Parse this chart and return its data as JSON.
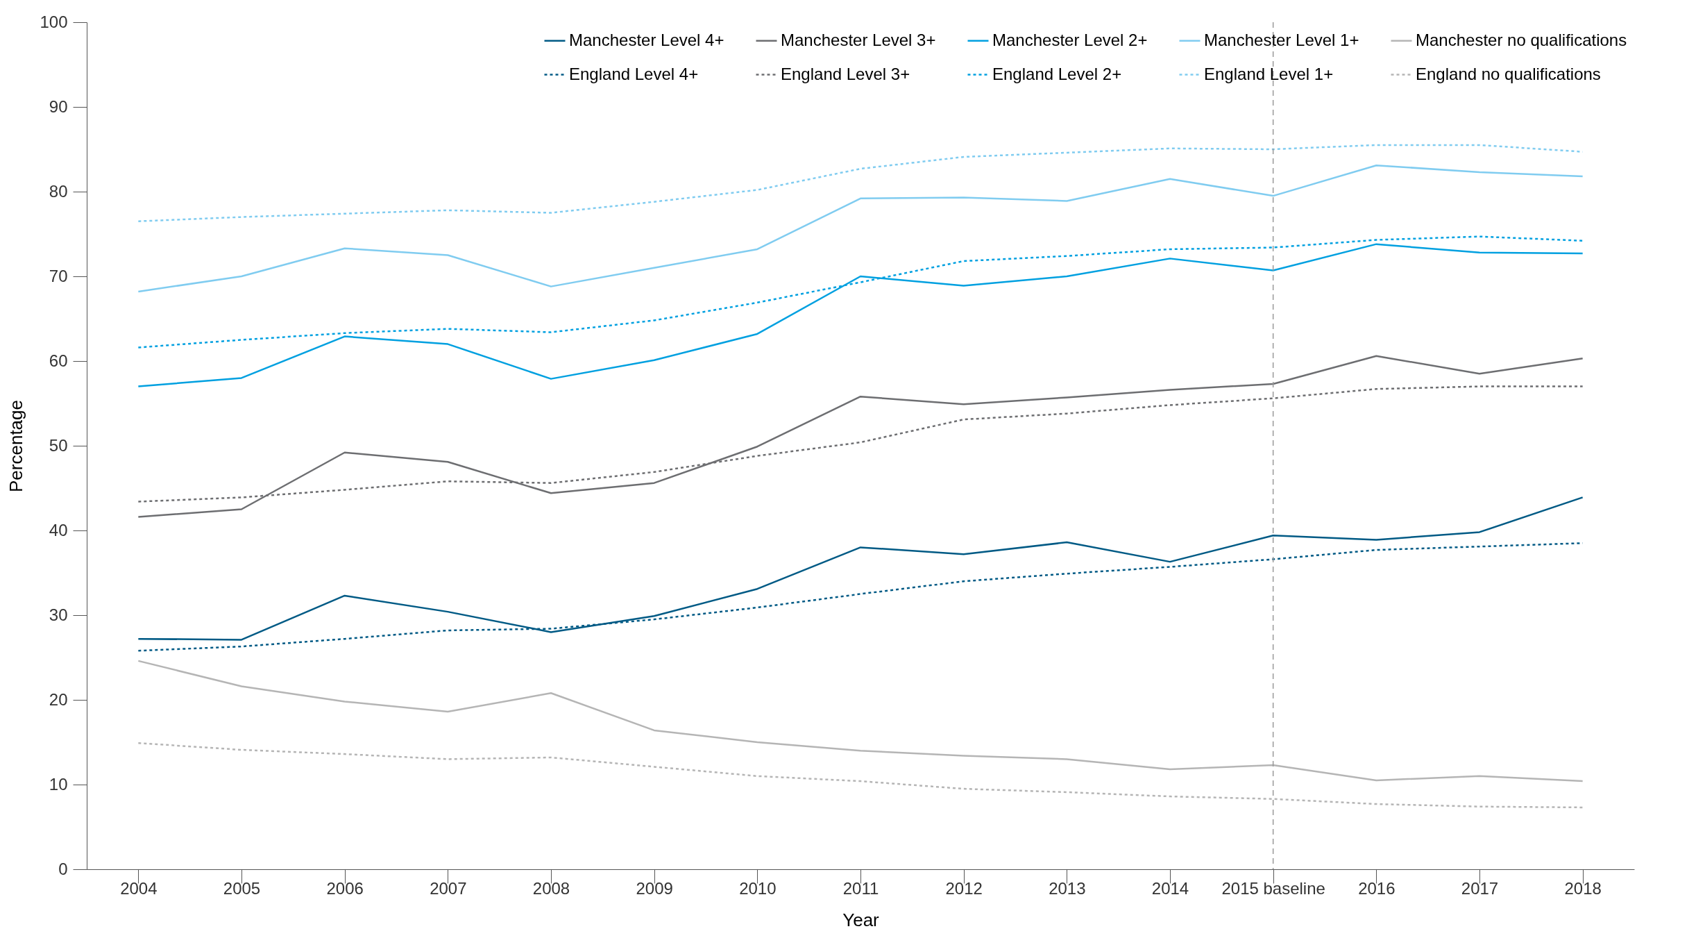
{
  "chart_data": {
    "type": "line",
    "xlabel": "Year",
    "ylabel": "Percentage",
    "categories": [
      "2004",
      "2005",
      "2006",
      "2007",
      "2008",
      "2009",
      "2010",
      "2011",
      "2012",
      "2013",
      "2014",
      "2015 baseline",
      "2016",
      "2017",
      "2018"
    ],
    "ylim": [
      0,
      100
    ],
    "yticks": [
      0,
      10,
      20,
      30,
      40,
      50,
      60,
      70,
      80,
      90,
      100
    ],
    "grid": false,
    "legend": "top right",
    "marker": "none",
    "ref_lines": [
      {
        "axis": "x",
        "value": "2015 baseline",
        "color": "#999999",
        "line_style": "dashed"
      }
    ],
    "series": [
      {
        "name": "Manchester Level 4+",
        "color": "#005a85",
        "line_style": "solid",
        "values": [
          27.2,
          27.1,
          32.3,
          30.4,
          28.0,
          29.9,
          33.1,
          38.0,
          37.2,
          38.6,
          36.3,
          39.4,
          38.9,
          39.8,
          43.9
        ]
      },
      {
        "name": "Manchester Level 3+",
        "color": "#6d6e71",
        "line_style": "solid",
        "values": [
          41.6,
          42.5,
          49.2,
          48.1,
          44.4,
          45.6,
          49.9,
          55.8,
          54.9,
          55.7,
          56.6,
          57.3,
          60.6,
          58.5,
          60.3
        ]
      },
      {
        "name": "Manchester Level 2+",
        "color": "#00a0e0",
        "line_style": "solid",
        "values": [
          57.0,
          58.0,
          62.9,
          62.0,
          57.9,
          60.1,
          63.2,
          70.0,
          68.9,
          70.0,
          72.1,
          70.7,
          73.8,
          72.8,
          72.7
        ]
      },
      {
        "name": "Manchester Level 1+",
        "color": "#80ccf0",
        "line_style": "solid",
        "values": [
          68.2,
          70.0,
          73.3,
          72.5,
          68.8,
          71.0,
          73.2,
          79.2,
          79.3,
          78.9,
          81.5,
          79.5,
          83.1,
          82.3,
          81.8
        ]
      },
      {
        "name": "Manchester no qualifications",
        "color": "#b5b5b5",
        "line_style": "solid",
        "values": [
          24.6,
          21.6,
          19.8,
          18.6,
          20.8,
          16.4,
          15.0,
          14.0,
          13.4,
          13.0,
          11.8,
          12.3,
          10.5,
          11.0,
          10.4
        ]
      },
      {
        "name": "England Level 4+",
        "color": "#005a85",
        "line_style": "dotted",
        "values": [
          25.8,
          26.3,
          27.2,
          28.2,
          28.4,
          29.5,
          30.9,
          32.5,
          34.0,
          34.9,
          35.7,
          36.6,
          37.7,
          38.1,
          38.5
        ]
      },
      {
        "name": "England Level 3+",
        "color": "#6d6e71",
        "line_style": "dotted",
        "values": [
          43.4,
          43.9,
          44.8,
          45.8,
          45.6,
          46.9,
          48.8,
          50.4,
          53.1,
          53.8,
          54.8,
          55.6,
          56.7,
          57.0,
          57.0
        ]
      },
      {
        "name": "England Level 2+",
        "color": "#00a0e0",
        "line_style": "dotted",
        "values": [
          61.6,
          62.5,
          63.3,
          63.8,
          63.4,
          64.8,
          66.9,
          69.3,
          71.8,
          72.4,
          73.2,
          73.4,
          74.3,
          74.7,
          74.2
        ]
      },
      {
        "name": "England Level 1+",
        "color": "#80ccf0",
        "line_style": "dotted",
        "values": [
          76.5,
          77.0,
          77.4,
          77.8,
          77.5,
          78.8,
          80.2,
          82.7,
          84.1,
          84.6,
          85.1,
          85.0,
          85.5,
          85.5,
          84.7
        ]
      },
      {
        "name": "England no qualifications",
        "color": "#b5b5b5",
        "line_style": "dotted",
        "values": [
          14.9,
          14.1,
          13.6,
          13.0,
          13.2,
          12.1,
          11.0,
          10.4,
          9.5,
          9.1,
          8.6,
          8.3,
          7.7,
          7.4,
          7.3
        ]
      }
    ]
  }
}
